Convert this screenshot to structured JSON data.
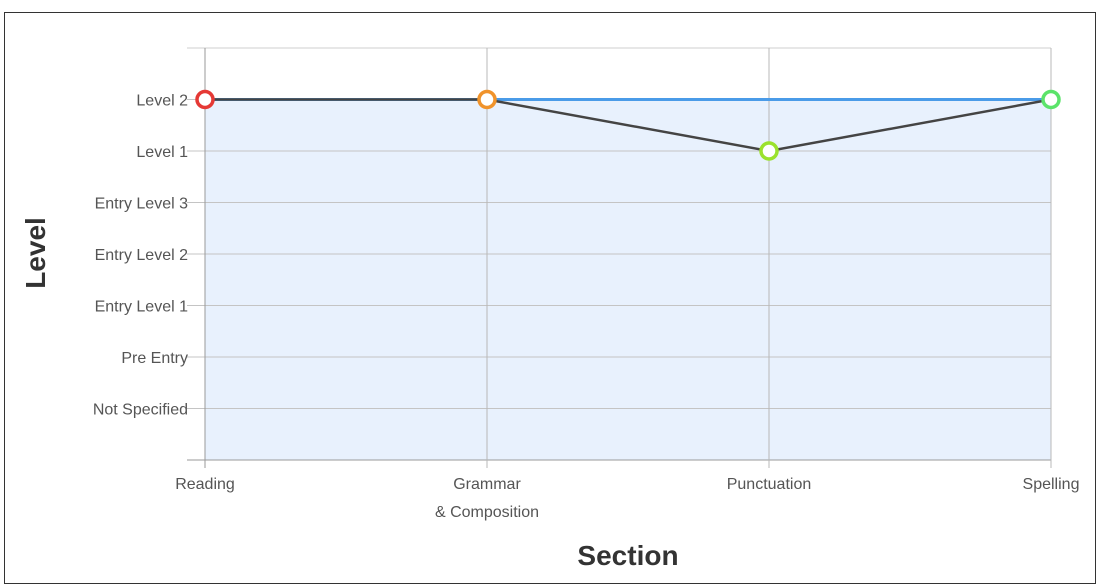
{
  "chart_data": {
    "type": "line",
    "xlabel": "Section",
    "ylabel": "Level",
    "categories": [
      [
        "Reading"
      ],
      [
        "Grammar",
        "& Composition"
      ],
      [
        "Punctuation"
      ],
      [
        "Spelling"
      ]
    ],
    "y_levels": [
      "Not Specified",
      "Pre Entry",
      "Entry Level 1",
      "Entry Level 2",
      "Entry Level 3",
      "Level 1",
      "Level 2"
    ],
    "ylim": [
      -1,
      7
    ],
    "grid": true,
    "series": [
      {
        "values": [
          "Level 2",
          "Level 2",
          "Level 1",
          "Level 2"
        ],
        "color": "#444444",
        "style": "line"
      },
      {
        "values": [
          "Level 2",
          "Level 2",
          "Level 2",
          "Level 2"
        ],
        "color": "#4a9be8",
        "style": "target-line"
      }
    ],
    "point_colors": [
      "#e53935",
      "#f0932b",
      "#9be22d",
      "#5be36a"
    ],
    "fill_color": "#e8f1fd"
  }
}
